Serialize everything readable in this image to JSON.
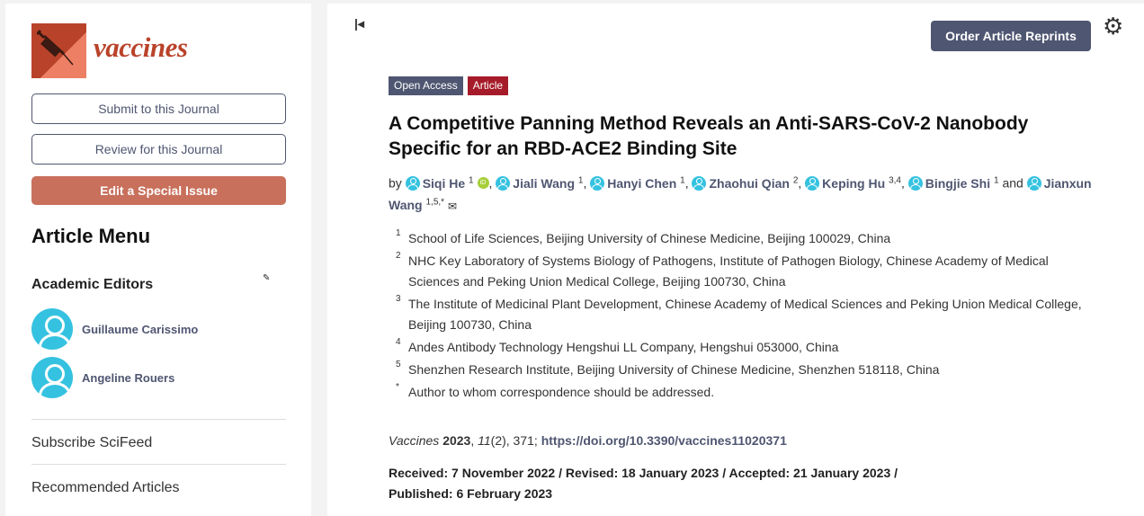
{
  "sidebar": {
    "journal": "vaccines",
    "submit": "Submit to this Journal",
    "review": "Review for this Journal",
    "special": "Edit a Special Issue",
    "menu_title": "Article Menu",
    "editors_title": "Academic Editors",
    "editors": [
      "Guillaume Carissimo",
      "Angeline Rouers"
    ],
    "links": [
      "Subscribe SciFeed",
      "Recommended Articles"
    ]
  },
  "header": {
    "reprints": "Order Article Reprints",
    "badges": [
      "Open Access",
      "Article"
    ],
    "badge_colors": [
      "#4f5671",
      "#a61b29"
    ]
  },
  "article": {
    "title": "A Competitive Panning Method Reveals an Anti-SARS-CoV-2 Nanobody Specific for an RBD-ACE2 Binding Site",
    "by": "by",
    "and": "and",
    "authors": [
      {
        "name": "Siqi He",
        "aff": "1"
      },
      {
        "name": "Jiali Wang",
        "aff": "1"
      },
      {
        "name": "Hanyi Chen",
        "aff": "1"
      },
      {
        "name": "Zhaohui Qian",
        "aff": "2"
      },
      {
        "name": "Keping Hu",
        "aff": "3,4"
      },
      {
        "name": "Bingjie Shi",
        "aff": "1"
      },
      {
        "name": "Jianxun Wang",
        "aff": "1,5,*"
      }
    ],
    "affiliations": [
      {
        "n": "1",
        "text": "School of Life Sciences, Beijing University of Chinese Medicine, Beijing 100029, China"
      },
      {
        "n": "2",
        "text": "NHC Key Laboratory of Systems Biology of Pathogens, Institute of Pathogen Biology, Chinese Academy of Medical Sciences and Peking Union Medical College, Beijing 100730, China"
      },
      {
        "n": "3",
        "text": "The Institute of Medicinal Plant Development, Chinese Academy of Medical Sciences and Peking Union Medical College, Beijing 100730, China"
      },
      {
        "n": "4",
        "text": "Andes Antibody Technology Hengshui LL Company, Hengshui 053000, China"
      },
      {
        "n": "5",
        "text": "Shenzhen Research Institute, Beijing University of Chinese Medicine, Shenzhen 518118, China"
      },
      {
        "n": "*",
        "text": "Author to whom correspondence should be addressed."
      }
    ],
    "citation": {
      "journal": "Vaccines",
      "year": "2023",
      "volume": "11",
      "issue": "(2), 371; ",
      "doi": "https://doi.org/10.3390/vaccines11020371"
    },
    "dates": "Received: 7 November 2022 / Revised: 18 January 2023 / Accepted: 21 January 2023 / Published: 6 February 2023"
  }
}
